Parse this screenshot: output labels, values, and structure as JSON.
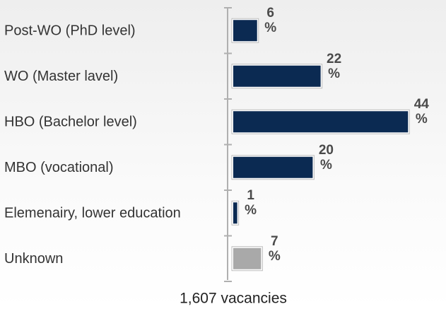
{
  "chart_data": {
    "type": "barh",
    "categories": [
      "Post-WO (PhD level)",
      "WO (Master lavel)",
      "HBO (Bachelor level)",
      "MBO (vocational)",
      "Elemenairy, lower education",
      "Unknown"
    ],
    "values": [
      6,
      22,
      44,
      20,
      1,
      7
    ],
    "value_labels": [
      "6 %",
      "22 %",
      "44 %",
      "20 %",
      "1 %",
      "7 %"
    ],
    "colors": [
      "#0b2a52",
      "#0b2a52",
      "#0b2a52",
      "#0b2a52",
      "#0b2a52",
      "#a9a9a9"
    ],
    "caption": "1,607 vacancies"
  }
}
